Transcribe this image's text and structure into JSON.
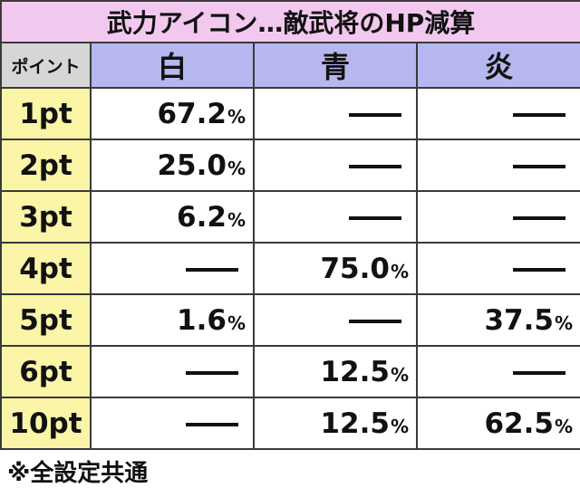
{
  "title": "武力アイコン…敵武将のHP減算",
  "header": {
    "point_label": "ポイント",
    "columns": [
      "白",
      "青",
      "炎"
    ]
  },
  "rows": [
    {
      "label": "1pt",
      "cells": [
        "67.2",
        "",
        ""
      ]
    },
    {
      "label": "2pt",
      "cells": [
        "25.0",
        "",
        ""
      ]
    },
    {
      "label": "3pt",
      "cells": [
        "6.2",
        "",
        ""
      ]
    },
    {
      "label": "4pt",
      "cells": [
        "",
        "75.0",
        ""
      ]
    },
    {
      "label": "5pt",
      "cells": [
        "1.6",
        "",
        "37.5"
      ]
    },
    {
      "label": "6pt",
      "cells": [
        "",
        "12.5",
        ""
      ]
    },
    {
      "label": "10pt",
      "cells": [
        "",
        "12.5",
        "62.5"
      ]
    }
  ],
  "percent_sign": "%",
  "footnote": "※全設定共通",
  "colors": {
    "title_bg": "#f3c8ef",
    "header_bg": "#b7b7f0",
    "point_header_bg": "#d6d6d6",
    "row_label_bg": "#fbf5a8"
  }
}
